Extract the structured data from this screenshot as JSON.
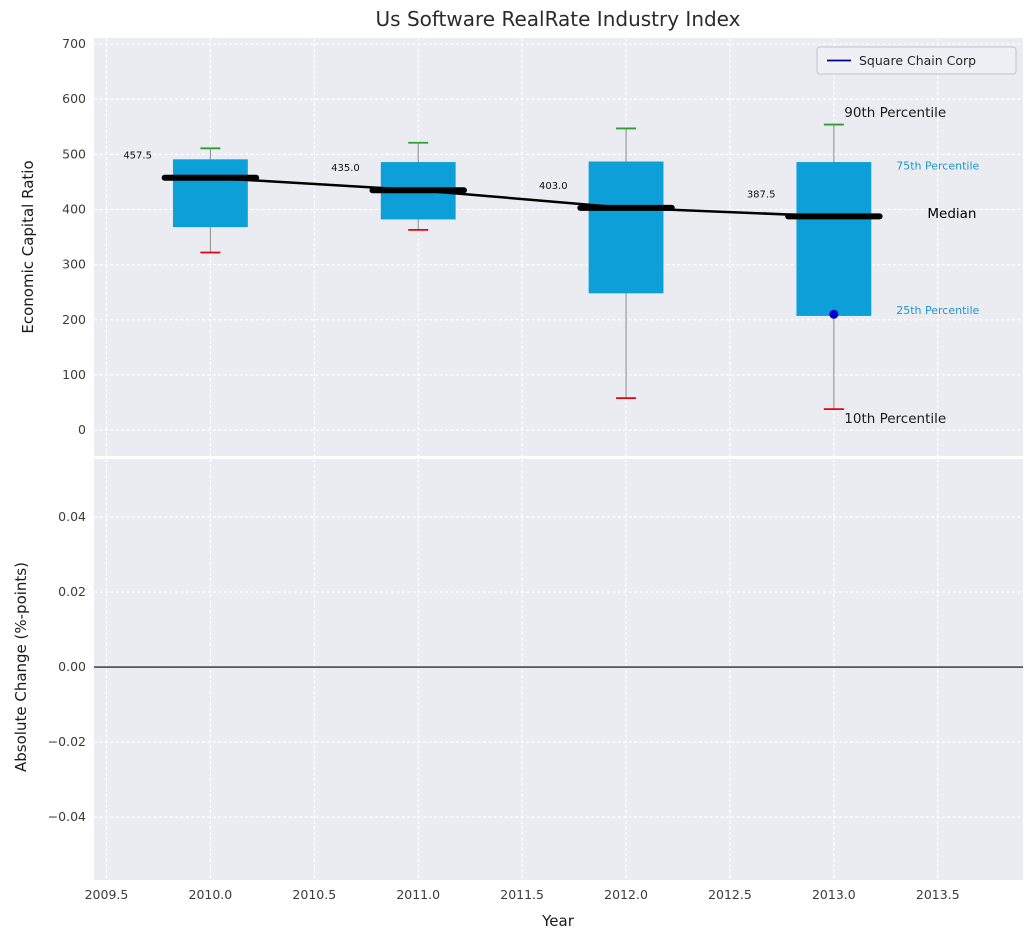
{
  "title": "Us Software RealRate Industry Index",
  "legend": {
    "label": "Square Chain Corp",
    "line_color": "#00008b"
  },
  "colors": {
    "plot_bg": "#eaecf2",
    "grid": "#ffffff",
    "box_fill": "#0c9fd8",
    "median": "#000000",
    "trend_line": "#000000",
    "whisker": "#8a8a8a",
    "cap_top": "#2ca02c",
    "cap_bottom": "#e8000b",
    "marker": "#0000cd",
    "tick_label": "#3c3c3c",
    "percentile_label": "#2097c4"
  },
  "xaxis": {
    "label": "Year",
    "xlim": [
      2009.44,
      2013.91
    ],
    "ticks": [
      2009.5,
      2010,
      2010.5,
      2011,
      2011.5,
      2012,
      2012.5,
      2013,
      2013.5
    ],
    "tick_labels": [
      "2009.5",
      "2010.0",
      "2010.5",
      "2011.0",
      "2011.5",
      "2012.0",
      "2012.5",
      "2013.0",
      "2013.5"
    ]
  },
  "chart_data": [
    {
      "type": "boxplot",
      "title": "Us Software RealRate Industry Index",
      "ylabel": "Economic Capital Ratio",
      "ylim": [
        -47,
        711
      ],
      "yticks": [
        0,
        100,
        200,
        300,
        400,
        500,
        600,
        700
      ],
      "ytick_labels": [
        "0",
        "100",
        "200",
        "300",
        "400",
        "500",
        "600",
        "700"
      ],
      "grid": true,
      "legend_position": "upper right",
      "boxes": [
        {
          "year": 2010,
          "p10": 322,
          "p25": 368,
          "median": 457.5,
          "median_label": "457.5",
          "p75": 491,
          "p90": 511
        },
        {
          "year": 2011,
          "p10": 363,
          "p25": 382,
          "median": 435.0,
          "median_label": "435.0",
          "p75": 486,
          "p90": 521
        },
        {
          "year": 2012,
          "p10": 58,
          "p25": 248,
          "median": 403.0,
          "median_label": "403.0",
          "p75": 487,
          "p90": 547
        },
        {
          "year": 2013,
          "p10": 38,
          "p25": 207,
          "median": 387.5,
          "median_label": "387.5",
          "p75": 486,
          "p90": 554
        }
      ],
      "trend": "median",
      "marker": {
        "series": "Square Chain Corp",
        "x": 2013,
        "y": 210
      },
      "annotations": [
        {
          "text": "90th Percentile",
          "x": 2013.05,
          "y": 575,
          "color": "#1a1a1a",
          "size": 13.5
        },
        {
          "text": "75th Percentile",
          "x": 2013.3,
          "y": 480,
          "color": "#2097c4",
          "size": 11
        },
        {
          "text": "Median",
          "x": 2013.45,
          "y": 392,
          "color": "#000000",
          "size": 13.5
        },
        {
          "text": "25th Percentile",
          "x": 2013.3,
          "y": 218,
          "color": "#2097c4",
          "size": 11
        },
        {
          "text": "10th Percentile",
          "x": 2013.05,
          "y": 20,
          "color": "#1a1a1a",
          "size": 13.5
        }
      ]
    },
    {
      "type": "line",
      "ylabel": "Absolute Change (%-points)",
      "ylim": [
        -0.0568,
        0.0555
      ],
      "yticks": [
        0.04,
        0.02,
        0,
        -0.02,
        -0.04
      ],
      "ytick_labels": [
        "0.04",
        "0.02",
        "0.00",
        "−0.02",
        "−0.04"
      ],
      "grid": true,
      "zero_line": true,
      "series": []
    }
  ]
}
